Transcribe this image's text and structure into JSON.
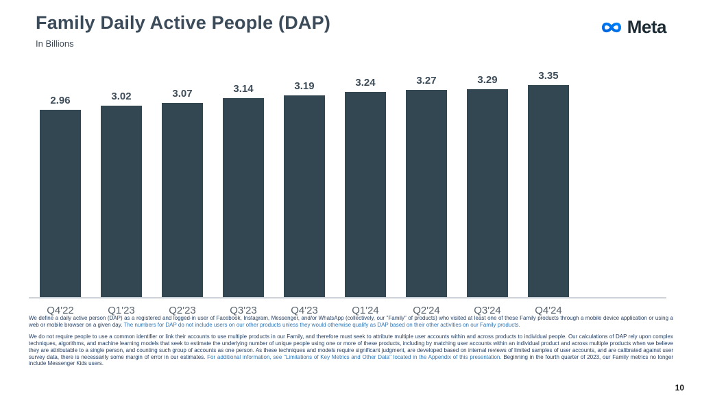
{
  "slide": {
    "title": "Family Daily Active People (DAP)",
    "subtitle": "In Billions",
    "logo_text": "Meta",
    "page_number": "10"
  },
  "colors": {
    "bar": "#334753",
    "title": "#3c4b59",
    "value_label": "#3d4c59",
    "axis_label": "#59646e",
    "footnote_dark": "#1f3a5f",
    "footnote_blue": "#2e74b5",
    "logo_gradient_start": "#0064e0",
    "logo_gradient_end": "#0082fb",
    "logo_text": "#1c2b33"
  },
  "chart_data": {
    "type": "bar",
    "title": "Family Daily Active People (DAP)",
    "subtitle": "In Billions",
    "unit": "billions",
    "categories": [
      "Q4'22",
      "Q1'23",
      "Q2'23",
      "Q3'23",
      "Q4'23",
      "Q1'24",
      "Q2'24",
      "Q3'24",
      "Q4'24"
    ],
    "values": [
      2.96,
      3.02,
      3.07,
      3.14,
      3.19,
      3.24,
      3.27,
      3.29,
      3.35
    ],
    "value_labels": [
      "2.96",
      "3.02",
      "3.07",
      "3.14",
      "3.19",
      "3.24",
      "3.27",
      "3.29",
      "3.35"
    ],
    "ylim": [
      0,
      3.35
    ],
    "grid": false,
    "data_labels": true,
    "legend": false
  },
  "footnotes": [
    {
      "segments": [
        {
          "style": "dark",
          "text": "We define a daily active person (DAP) as a registered and logged-in user of Facebook, Instagram, Messenger, and/or WhatsApp (collectively, our \"Family\" of products) who visited at least one of these Family products through a mobile device application or using a web or mobile browser on a given day. "
        },
        {
          "style": "blue",
          "text": "The numbers for DAP do not include users on our other products unless they would otherwise qualify as DAP based on their other activities on our Family products."
        }
      ]
    },
    {
      "segments": [
        {
          "style": "dark",
          "text": "We do not require people to use a common identifier or link their accounts to use multiple products in our Family, and therefore must seek to attribute multiple user accounts within and across products to individual people. Our calculations of DAP rely upon complex techniques, algorithms, and machine learning models that seek to estimate the underlying number of unique people using one or more of these products, including by matching user accounts within an individual product and across multiple products when we believe they are attributable to a single person, and counting such group of accounts as one person. As these techniques and models require significant judgment, are developed based on internal reviews of limited samples of user accounts, and are calibrated against user survey data, there is necessarily some margin of error in our estimates. "
        },
        {
          "style": "blue",
          "text": "For additional information, see \"Limitations of Key Metrics and Other Data\" located in the Appendix of this presentation."
        },
        {
          "style": "dark",
          "text": " Beginning in the fourth quarter of 2023, our Family metrics no longer include Messenger Kids users."
        }
      ]
    }
  ]
}
